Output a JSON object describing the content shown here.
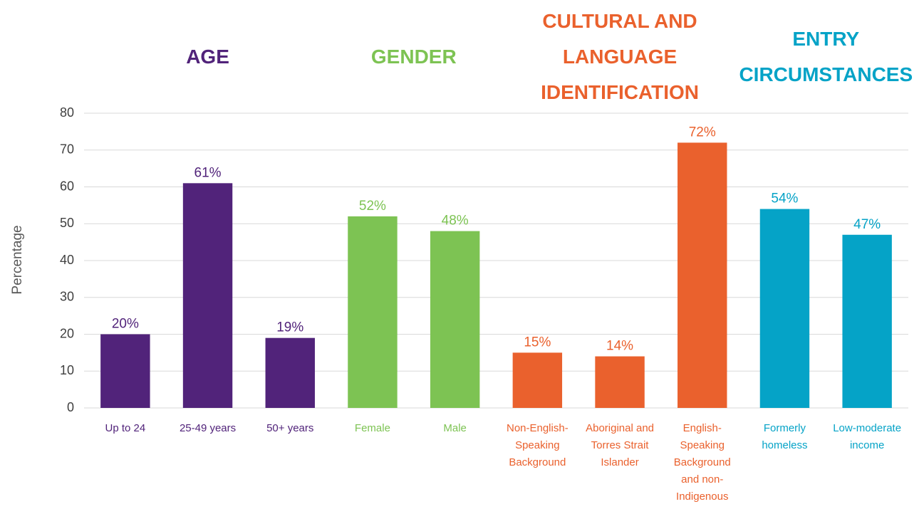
{
  "chart_data": {
    "type": "bar",
    "y_label": "Percentage",
    "ylim": [
      0,
      80
    ],
    "yticks": [
      0,
      10,
      20,
      30,
      40,
      50,
      60,
      70,
      80
    ],
    "grid": true,
    "groups": [
      {
        "name": "AGE",
        "color": "#51237a",
        "categories": [
          "Up to 24",
          "25-49 years",
          "50+ years"
        ],
        "values": [
          20,
          61,
          19
        ],
        "value_labels": [
          "20%",
          "61%",
          "19%"
        ]
      },
      {
        "name": "GENDER",
        "color": "#7dc353",
        "categories": [
          "Female",
          "Male"
        ],
        "values": [
          52,
          48
        ],
        "value_labels": [
          "52%",
          "48%"
        ]
      },
      {
        "name": "CULTURAL AND LANGUAGE IDENTIFICATION",
        "color": "#ea612d",
        "categories": [
          "Non-English-Speaking Background",
          "Aboriginal and Torres Strait Islander",
          "English-Speaking Background and non-Indigenous"
        ],
        "values": [
          15,
          14,
          72
        ],
        "value_labels": [
          "15%",
          "14%",
          "72%"
        ]
      },
      {
        "name": "ENTRY CIRCUMSTANCES",
        "color": "#05a3c7",
        "categories": [
          "Formerly homeless",
          "Low-moderate income"
        ],
        "values": [
          54,
          47
        ],
        "value_labels": [
          "54%",
          "47%"
        ]
      }
    ]
  }
}
